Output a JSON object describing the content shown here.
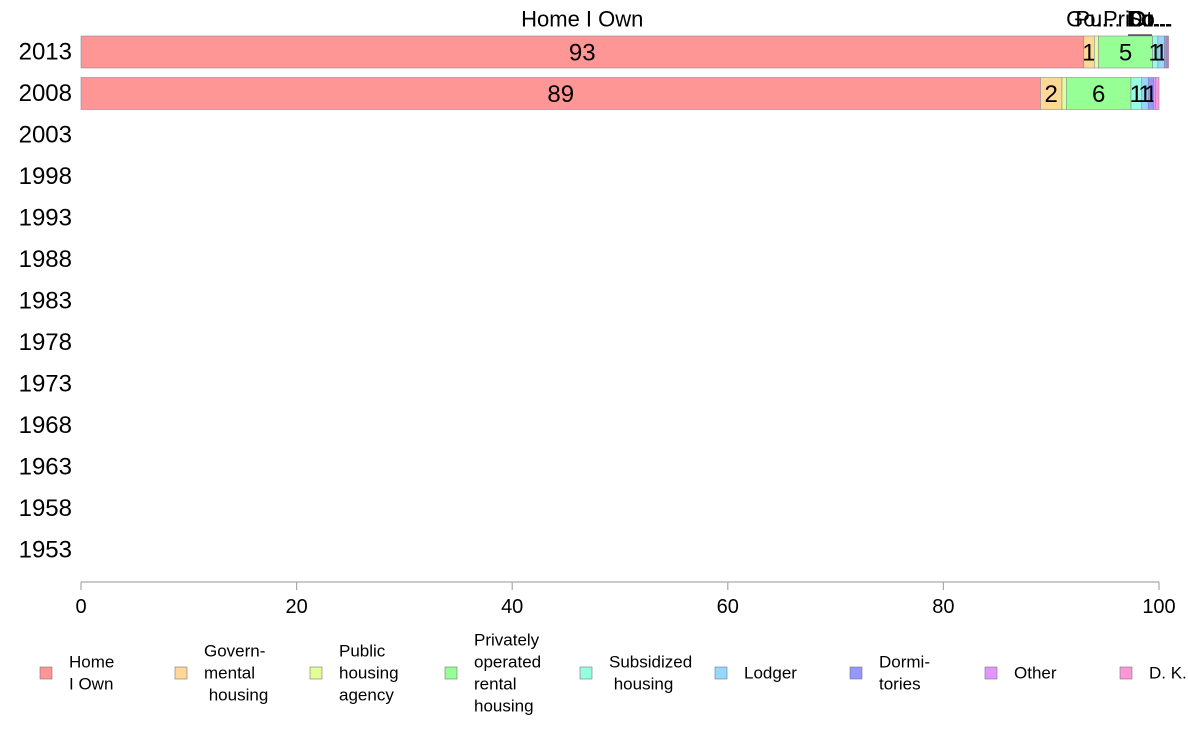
{
  "chart_data": {
    "type": "bar",
    "orientation": "horizontal",
    "stacked": true,
    "categories": [
      "2013",
      "2008",
      "2003",
      "1998",
      "1993",
      "1988",
      "1983",
      "1978",
      "1973",
      "1968",
      "1963",
      "1958",
      "1953"
    ],
    "xlim": [
      0,
      100
    ],
    "xticks": [
      "0",
      "20",
      "40",
      "60",
      "80",
      "100"
    ],
    "grid": false,
    "legend_position": "bottom",
    "top_labels": [
      "Home I Own",
      "Go...",
      "Pu...",
      "Pri...",
      "Su...",
      "Lo...",
      "Do...",
      "Ot...",
      "D...."
    ],
    "series": [
      {
        "name": "Home I Own",
        "legend_lines": [
          "Home",
          "I Own"
        ],
        "color": "#ff9696",
        "values": [
          93,
          89,
          null,
          null,
          null,
          null,
          null,
          null,
          null,
          null,
          null,
          null,
          null
        ]
      },
      {
        "name": "Governmental housing",
        "legend_lines": [
          "Govern-",
          "mental",
          " housing"
        ],
        "color": "#ffd796",
        "values": [
          1,
          2,
          null,
          null,
          null,
          null,
          null,
          null,
          null,
          null,
          null,
          null,
          null
        ]
      },
      {
        "name": "Public housing agency",
        "legend_lines": [
          "Public",
          "housing",
          "agency"
        ],
        "color": "#e1ff96",
        "values": [
          0.4,
          0.4,
          null,
          null,
          null,
          null,
          null,
          null,
          null,
          null,
          null,
          null,
          null
        ]
      },
      {
        "name": "Privately operated rental housing",
        "legend_lines": [
          "Privately",
          "operated",
          "rental",
          "housing"
        ],
        "color": "#96ff96",
        "values": [
          5,
          6,
          null,
          null,
          null,
          null,
          null,
          null,
          null,
          null,
          null,
          null,
          null
        ]
      },
      {
        "name": "Subsidized housing",
        "legend_lines": [
          "Subsidized",
          " housing"
        ],
        "color": "#96ffe1",
        "values": [
          0.5,
          1,
          null,
          null,
          null,
          null,
          null,
          null,
          null,
          null,
          null,
          null,
          null
        ]
      },
      {
        "name": "Lodger",
        "legend_lines": [
          "Lodger"
        ],
        "color": "#96d7ff",
        "values": [
          0.6,
          0.6,
          null,
          null,
          null,
          null,
          null,
          null,
          null,
          null,
          null,
          null,
          null
        ]
      },
      {
        "name": "Dormitories",
        "legend_lines": [
          "Dormi-",
          "tories"
        ],
        "color": "#9696ff",
        "values": [
          0.2,
          0.5,
          null,
          null,
          null,
          null,
          null,
          null,
          null,
          null,
          null,
          null,
          null
        ]
      },
      {
        "name": "Other",
        "legend_lines": [
          "Other"
        ],
        "color": "#e196ff",
        "values": [
          0.1,
          0.2,
          null,
          null,
          null,
          null,
          null,
          null,
          null,
          null,
          null,
          null,
          null
        ]
      },
      {
        "name": "D. K.",
        "legend_lines": [
          "D. K."
        ],
        "color": "#ff96d7",
        "values": [
          0.1,
          0.3,
          null,
          null,
          null,
          null,
          null,
          null,
          null,
          null,
          null,
          null,
          null
        ]
      }
    ],
    "data_labels": [
      [
        "93",
        "1",
        "",
        "5",
        "1",
        "1",
        "",
        "",
        ""
      ],
      [
        "89",
        "2",
        "",
        "6",
        "1",
        "1",
        "1",
        "",
        ""
      ],
      [],
      [],
      [],
      [],
      [],
      [],
      [],
      [],
      [],
      [],
      []
    ]
  }
}
